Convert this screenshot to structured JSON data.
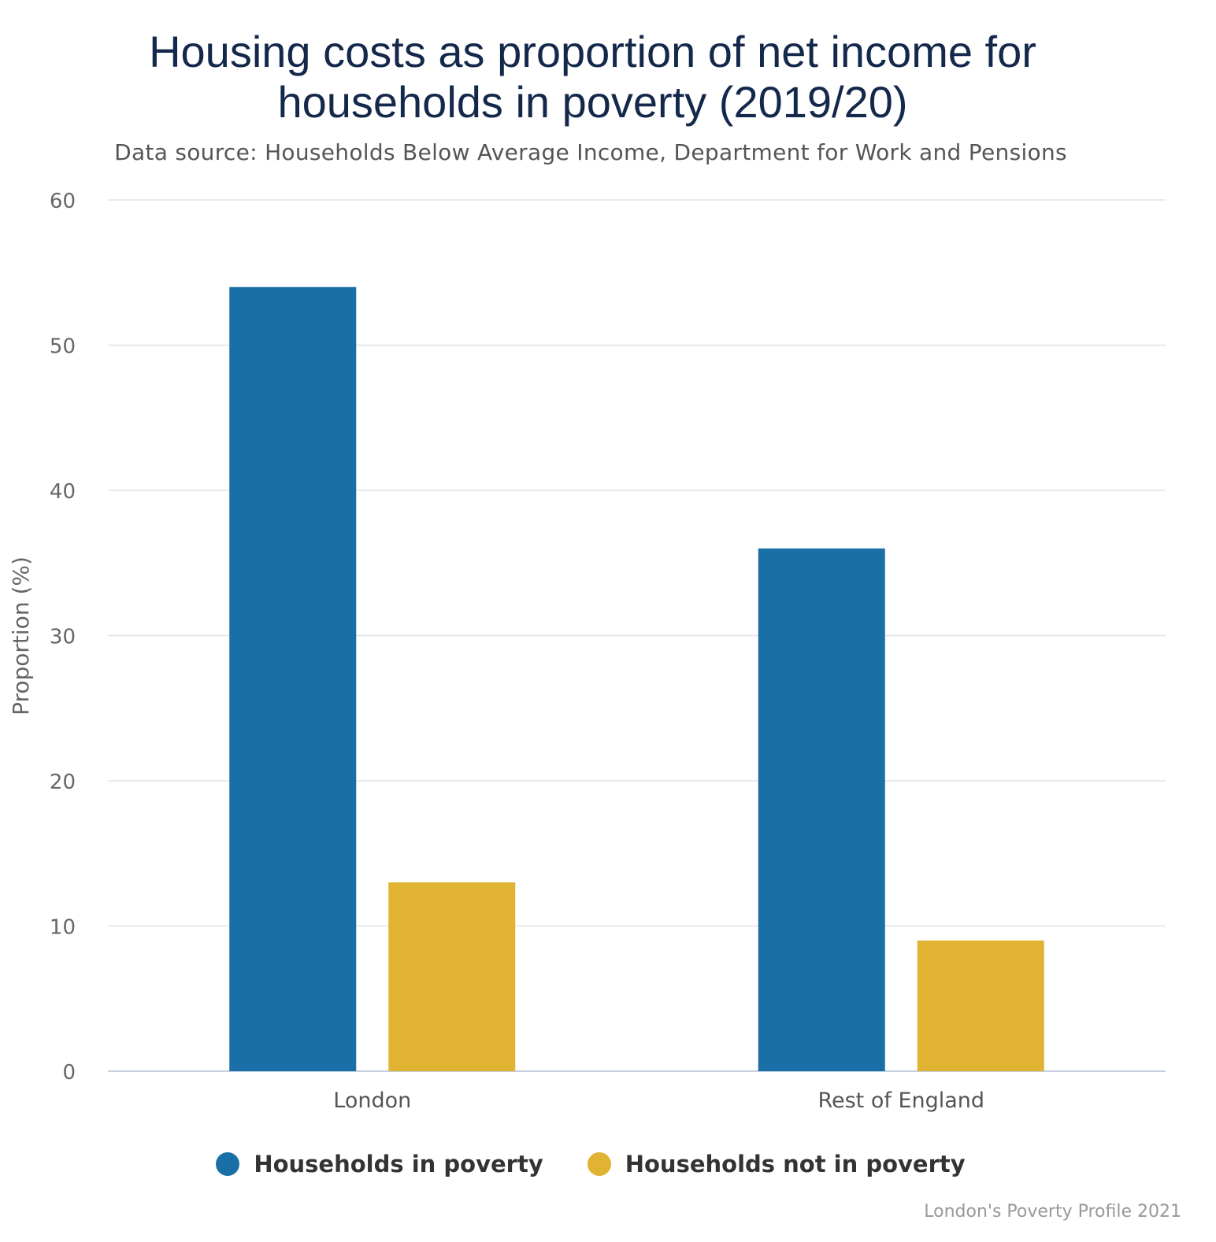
{
  "chart_data": {
    "type": "bar",
    "title": "Housing costs as proportion of net income for households in poverty (2019/20)",
    "subtitle": "Data source: Households Below Average Income, Department for Work and Pensions",
    "ylabel": "Proportion (%)",
    "xlabel": "",
    "ylim": [
      0,
      60
    ],
    "yticks": [
      0,
      10,
      20,
      30,
      40,
      50,
      60
    ],
    "categories": [
      "London",
      "Rest of England"
    ],
    "series": [
      {
        "name": "Households in poverty",
        "values": [
          54,
          36
        ],
        "color": "#1a6fa6"
      },
      {
        "name": "Households not in poverty",
        "values": [
          13,
          9
        ],
        "color": "#e0b332"
      }
    ],
    "grid": true,
    "legend_position": "bottom-center",
    "credits": "London's Poverty Profile 2021"
  }
}
